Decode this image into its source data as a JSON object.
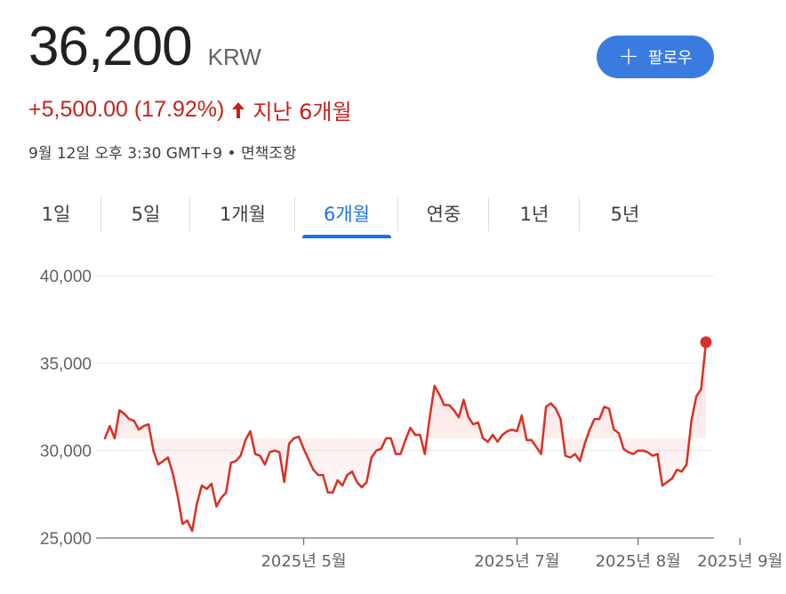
{
  "quote": {
    "price": "36,200",
    "currency": "KRW",
    "change": "+5,500.00 (17.92%)",
    "period": "지난 6개월",
    "timestamp": "9월 12일 오후 3:30 GMT+9",
    "separator": "•",
    "disclaimer": "면책조항"
  },
  "follow": {
    "label": "팔로우",
    "icon": "plus-icon"
  },
  "tabs": [
    {
      "label": "1일",
      "active": false
    },
    {
      "label": "5일",
      "active": false
    },
    {
      "label": "1개월",
      "active": false
    },
    {
      "label": "6개월",
      "active": true
    },
    {
      "label": "연중",
      "active": false
    },
    {
      "label": "1년",
      "active": false
    },
    {
      "label": "5년",
      "active": false
    }
  ],
  "colors": {
    "line": "#d93025",
    "accent": "#1a73e8",
    "button": "#3a7be0",
    "change": "#c5221f"
  },
  "chart_data": {
    "type": "line",
    "ylim": [
      25000,
      40000
    ],
    "yticks": [
      {
        "value": 25000,
        "label": "25,000"
      },
      {
        "value": 30000,
        "label": "30,000"
      },
      {
        "value": 35000,
        "label": "35,000"
      },
      {
        "value": 40000,
        "label": "40,000"
      }
    ],
    "xticks": [
      {
        "index": 41,
        "label": "2025년 5월"
      },
      {
        "index": 85,
        "label": "2025년 7월"
      },
      {
        "index": 110,
        "label": "2025년 8월"
      },
      {
        "index": 131,
        "label": "2025년 9월"
      }
    ],
    "grid": true,
    "marker_last": true,
    "values": [
      30700,
      31400,
      30700,
      32300,
      32100,
      31800,
      31700,
      31200,
      31400,
      31500,
      30000,
      29200,
      29400,
      29600,
      28700,
      27400,
      25800,
      26000,
      25400,
      27000,
      28000,
      27800,
      28100,
      26800,
      27300,
      27600,
      29300,
      29400,
      29700,
      30600,
      31100,
      29800,
      29700,
      29200,
      29900,
      30000,
      29900,
      28200,
      30400,
      30700,
      30800,
      30100,
      29500,
      28900,
      28600,
      28600,
      27600,
      27600,
      28300,
      28000,
      28600,
      28800,
      28200,
      27900,
      28200,
      29600,
      30000,
      30100,
      30700,
      30700,
      29800,
      29800,
      30600,
      31300,
      30900,
      30900,
      29800,
      31900,
      33700,
      33200,
      32600,
      32600,
      32300,
      31900,
      32900,
      31900,
      31500,
      31600,
      30700,
      30500,
      30900,
      30500,
      30900,
      31100,
      31200,
      31100,
      32000,
      30600,
      30600,
      30200,
      29800,
      32500,
      32700,
      32400,
      31800,
      29700,
      29600,
      29800,
      29400,
      30400,
      31200,
      31800,
      31800,
      32500,
      32400,
      31200,
      31000,
      30100,
      29900,
      29800,
      30000,
      30000,
      29900,
      29700,
      29800,
      28000,
      28200,
      28400,
      28900,
      28800,
      29200,
      31700,
      33100,
      33500,
      36200
    ]
  }
}
